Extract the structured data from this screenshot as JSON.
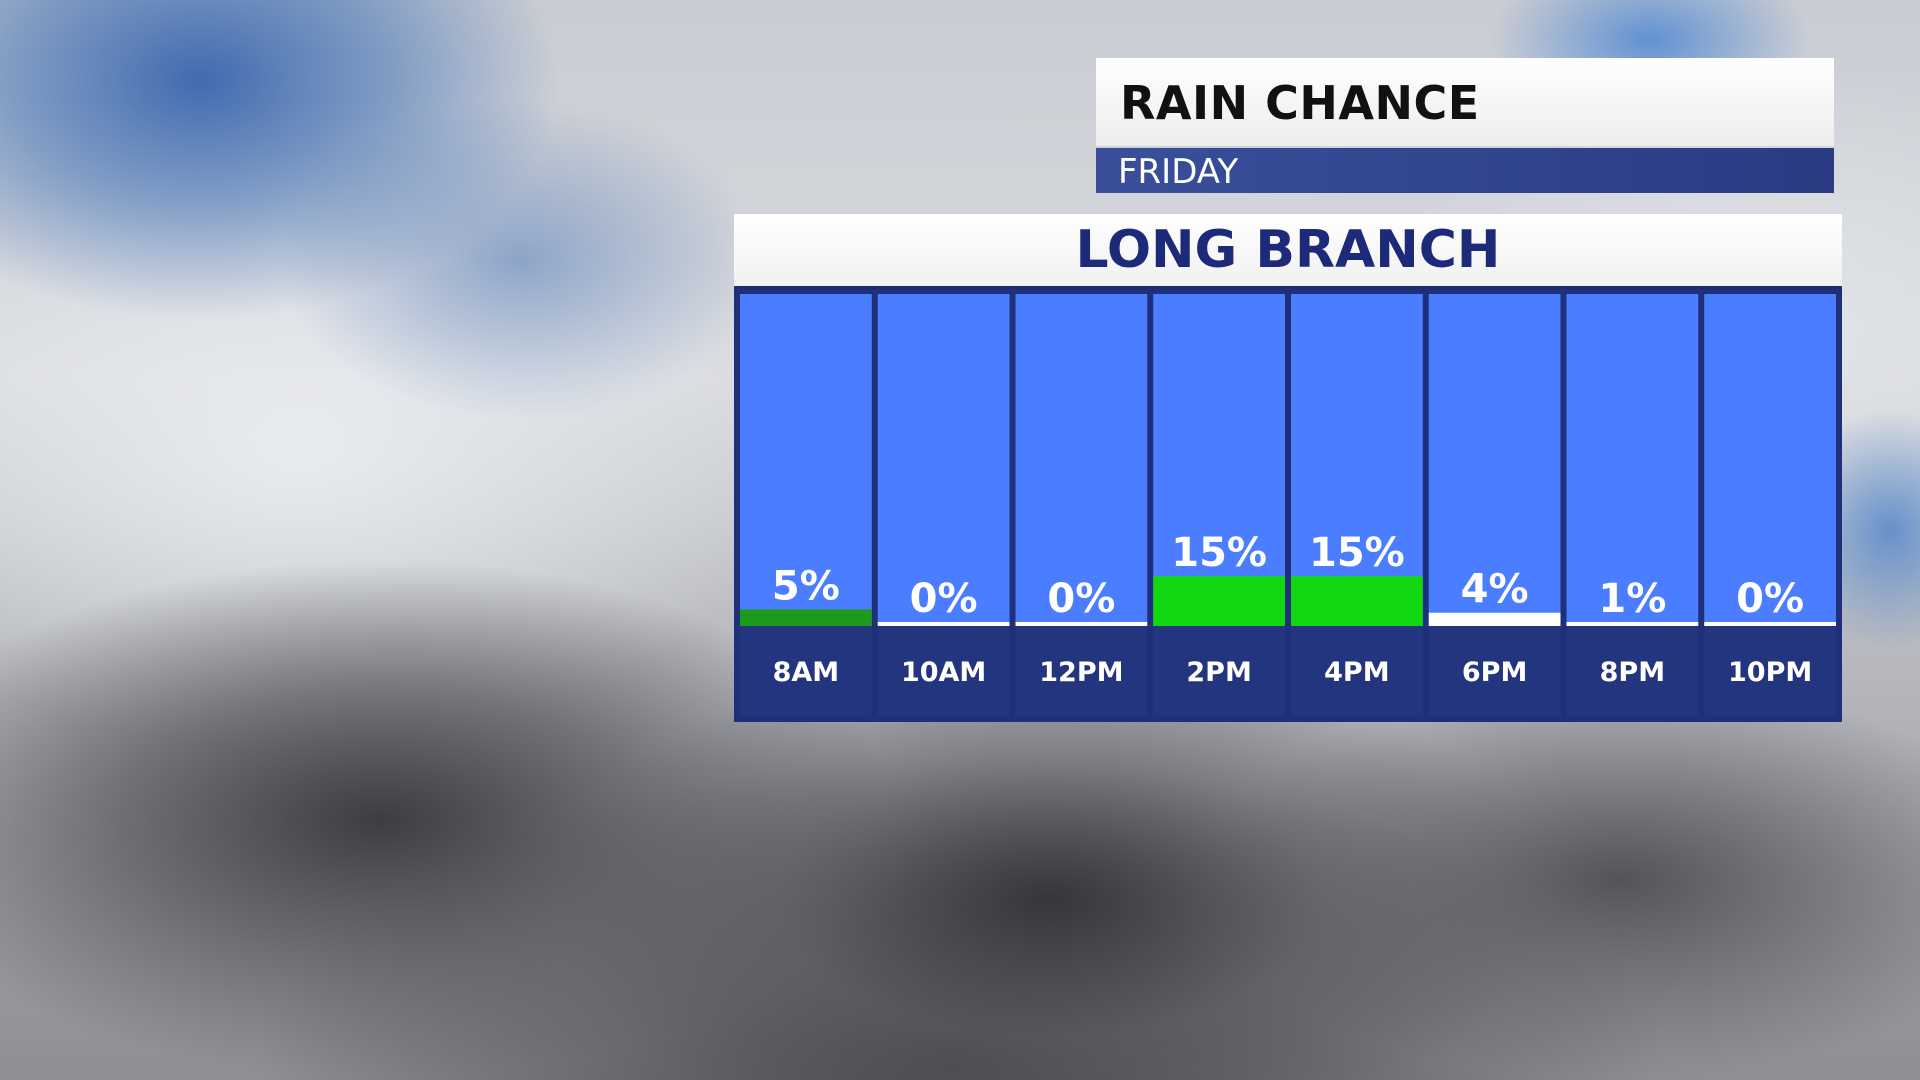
{
  "header": {
    "title": "RAIN CHANCE",
    "subtitle": "FRIDAY"
  },
  "location": "LONG BRANCH",
  "colors": {
    "column_fill": "#4a7dff",
    "column_border": "#1f2f7a",
    "label_band": "#243580",
    "bar_low": "#ffffff",
    "bar_mid": "#1c9a1c",
    "bar_high": "#12d812"
  },
  "chart_data": {
    "type": "bar",
    "categories": [
      "8AM",
      "10AM",
      "12PM",
      "2PM",
      "4PM",
      "6PM",
      "8PM",
      "10PM"
    ],
    "values": [
      5,
      0,
      0,
      15,
      15,
      4,
      1,
      0
    ],
    "data_labels": [
      "5%",
      "0%",
      "0%",
      "15%",
      "15%",
      "4%",
      "1%",
      "0%"
    ],
    "ylim": [
      0,
      100
    ]
  }
}
